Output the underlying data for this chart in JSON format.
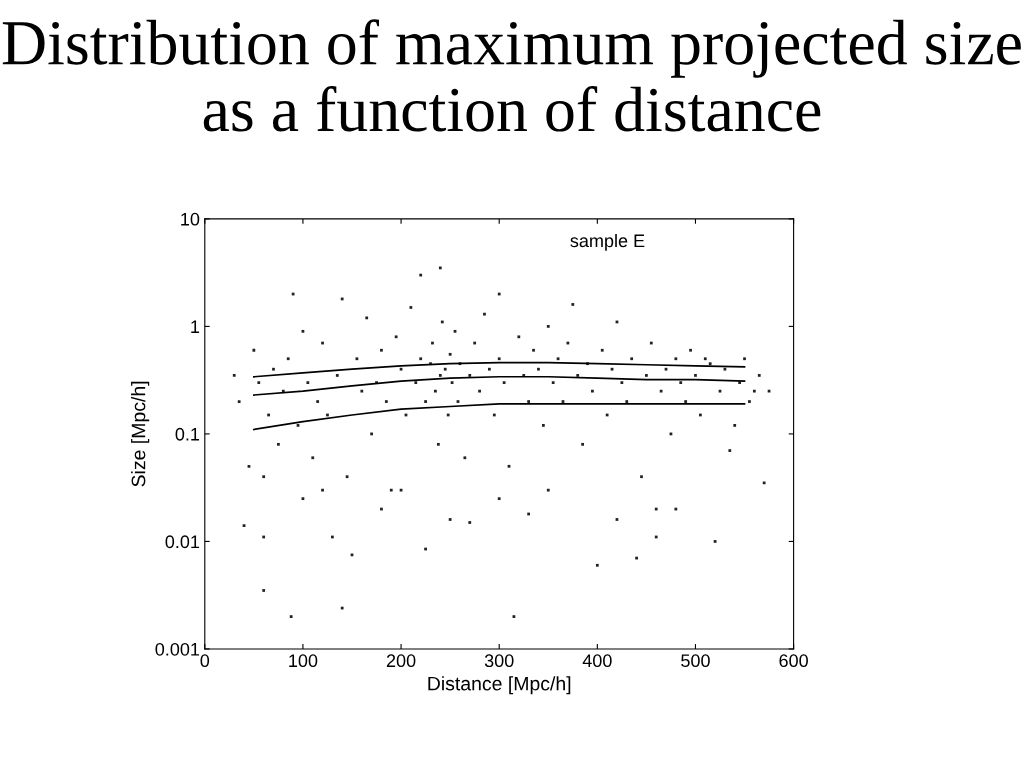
{
  "chart_data": {
    "type": "scatter",
    "title": "Distribution of maximum projected size as a function of distance",
    "xlabel": "Distance [Mpc/h]",
    "ylabel": "Size [Mpc/h]",
    "annotations": [
      "sample E"
    ],
    "log": "y",
    "xlim": [
      0,
      600
    ],
    "ylim": [
      0.001,
      10
    ],
    "xticks": [
      0,
      100,
      200,
      300,
      400,
      500,
      600
    ],
    "yticks": [
      {
        "value": 0.001,
        "label": "0.001"
      },
      {
        "value": 0.01,
        "label": "0.01"
      },
      {
        "value": 0.1,
        "label": "0.1"
      },
      {
        "value": 1,
        "label": "1"
      },
      {
        "value": 10,
        "label": "10"
      }
    ],
    "grid": false,
    "series": [
      {
        "color": "#222222",
        "marker": "square",
        "x": [
          88,
          140,
          60,
          315,
          40,
          60,
          130,
          150,
          225,
          400,
          440,
          460,
          520,
          570,
          535,
          240,
          220,
          90,
          140,
          300,
          375,
          510,
          560,
          30,
          35,
          45,
          50,
          55,
          65,
          70,
          75,
          80,
          85,
          95,
          100,
          105,
          110,
          115,
          120,
          125,
          135,
          145,
          155,
          160,
          165,
          170,
          175,
          180,
          185,
          190,
          195,
          200,
          205,
          210,
          215,
          220,
          225,
          230,
          232,
          235,
          238,
          240,
          242,
          245,
          248,
          250,
          252,
          255,
          258,
          260,
          265,
          270,
          275,
          280,
          285,
          290,
          295,
          300,
          305,
          310,
          320,
          325,
          330,
          335,
          340,
          345,
          350,
          355,
          360,
          365,
          370,
          380,
          385,
          390,
          395,
          405,
          410,
          415,
          420,
          425,
          430,
          435,
          445,
          450,
          455,
          465,
          470,
          475,
          480,
          485,
          490,
          495,
          500,
          505,
          515,
          525,
          530,
          540,
          545,
          550,
          555,
          565,
          575,
          180,
          270,
          330,
          420,
          480,
          250,
          200,
          100,
          350,
          300,
          460,
          60,
          120
        ],
        "values": [
          0.002,
          0.0024,
          0.0035,
          0.002,
          0.014,
          0.011,
          0.011,
          0.0075,
          0.0085,
          0.006,
          0.007,
          0.011,
          0.01,
          0.035,
          0.07,
          3.5,
          3.0,
          2.0,
          1.8,
          2.0,
          1.6,
          0.5,
          0.25,
          0.35,
          0.2,
          0.05,
          0.6,
          0.3,
          0.15,
          0.4,
          0.08,
          0.25,
          0.5,
          0.12,
          0.9,
          0.3,
          0.06,
          0.2,
          0.7,
          0.15,
          0.35,
          0.04,
          0.5,
          0.25,
          1.2,
          0.1,
          0.3,
          0.6,
          0.2,
          0.03,
          0.8,
          0.4,
          0.15,
          1.5,
          0.3,
          0.5,
          0.2,
          0.45,
          0.7,
          0.25,
          0.08,
          0.35,
          1.1,
          0.4,
          0.15,
          0.55,
          0.3,
          0.9,
          0.2,
          0.45,
          0.06,
          0.35,
          0.7,
          0.25,
          1.3,
          0.4,
          0.15,
          0.5,
          0.3,
          0.05,
          0.8,
          0.35,
          0.2,
          0.6,
          0.4,
          0.12,
          1.0,
          0.3,
          0.5,
          0.2,
          0.7,
          0.35,
          0.08,
          0.45,
          0.25,
          0.6,
          0.15,
          0.4,
          1.1,
          0.3,
          0.2,
          0.5,
          0.04,
          0.35,
          0.7,
          0.25,
          0.4,
          0.1,
          0.5,
          0.3,
          0.2,
          0.6,
          0.35,
          0.15,
          0.45,
          0.25,
          0.4,
          0.12,
          0.3,
          0.5,
          0.2,
          0.35,
          0.25,
          0.02,
          0.015,
          0.018,
          0.016,
          0.02,
          0.016,
          0.03,
          0.025,
          0.03,
          0.025,
          0.02,
          0.04,
          0.03
        ]
      },
      {
        "type": "line",
        "color": "#000000",
        "x": [
          50,
          100,
          150,
          200,
          250,
          300,
          350,
          400,
          450,
          500,
          550
        ],
        "values": [
          0.34,
          0.37,
          0.4,
          0.43,
          0.45,
          0.46,
          0.46,
          0.45,
          0.44,
          0.43,
          0.42
        ]
      },
      {
        "type": "line",
        "color": "#000000",
        "x": [
          50,
          100,
          150,
          200,
          250,
          300,
          350,
          400,
          450,
          500,
          550
        ],
        "values": [
          0.23,
          0.25,
          0.28,
          0.31,
          0.33,
          0.34,
          0.34,
          0.33,
          0.32,
          0.32,
          0.31
        ]
      },
      {
        "type": "line",
        "color": "#000000",
        "x": [
          50,
          100,
          150,
          200,
          250,
          300,
          350,
          400,
          450,
          500,
          550
        ],
        "values": [
          0.11,
          0.13,
          0.15,
          0.17,
          0.18,
          0.19,
          0.19,
          0.19,
          0.19,
          0.19,
          0.19
        ]
      }
    ]
  }
}
